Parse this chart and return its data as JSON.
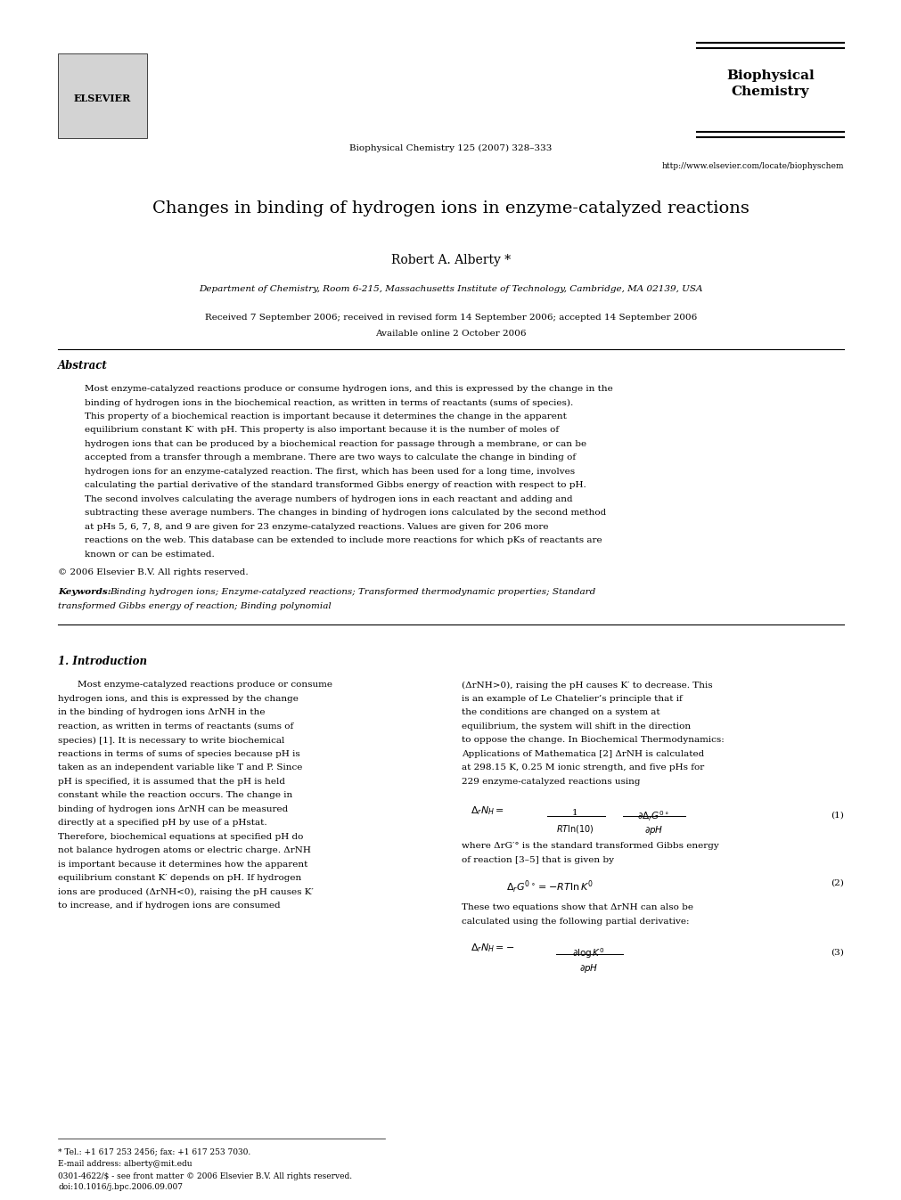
{
  "background_color": "#ffffff",
  "page_width": 9.92,
  "page_height": 13.23,
  "journal_name": "Biophysical\nChemistry",
  "journal_info": "Biophysical Chemistry 125 (2007) 328–333",
  "journal_url": "http://www.elsevier.com/locate/biophyschem",
  "title": "Changes in binding of hydrogen ions in enzyme-catalyzed reactions",
  "author": "Robert A. Alberty *",
  "affiliation": "Department of Chemistry, Room 6-215, Massachusetts Institute of Technology, Cambridge, MA 02139, USA",
  "received": "Received 7 September 2006; received in revised form 14 September 2006; accepted 14 September 2006",
  "available": "Available online 2 October 2006",
  "abstract_title": "Abstract",
  "abstract_text": "Most enzyme-catalyzed reactions produce or consume hydrogen ions, and this is expressed by the change in the binding of hydrogen ions in the biochemical reaction, as written in terms of reactants (sums of species). This property of a biochemical reaction is important because it determines the change in the apparent equilibrium constant K′ with pH. This property is also important because it is the number of moles of hydrogen ions that can be produced by a biochemical reaction for passage through a membrane, or can be accepted from a transfer through a membrane. There are two ways to calculate the change in binding of hydrogen ions for an enzyme-catalyzed reaction. The first, which has been used for a long time, involves calculating the partial derivative of the standard transformed Gibbs energy of reaction with respect to pH. The second involves calculating the average numbers of hydrogen ions in each reactant and adding and subtracting these average numbers. The changes in binding of hydrogen ions calculated by the second method at pHs 5, 6, 7, 8, and 9 are given for 23 enzyme-catalyzed reactions. Values are given for 206 more reactions on the web. This database can be extended to include more reactions for which pKs of reactants are known or can be estimated.",
  "copyright": "© 2006 Elsevier B.V. All rights reserved.",
  "keywords_label": "Keywords:",
  "keywords_text": "Binding hydrogen ions; Enzyme-catalyzed reactions; Transformed thermodynamic properties; Standard transformed Gibbs energy of reaction; Binding polynomial",
  "section1_title": "1. Introduction",
  "section1_col1_text": "Most enzyme-catalyzed reactions produce or consume hydrogen ions, and this is expressed by the change in the binding of hydrogen ions ΔrNH in the reaction, as written in terms of reactants (sums of species) [1]. It is necessary to write biochemical reactions in terms of sums of species because pH is taken as an independent variable like T and P. Since pH is specified, it is assumed that the pH is held constant while the reaction occurs. The change in binding of hydrogen ions ΔrNH can be measured directly at a specified pH by use of a pHstat. Therefore, biochemical equations at specified pH do not balance hydrogen atoms or electric charge. ΔrNH is important because it determines how the apparent equilibrium constant K′ depends on pH. If hydrogen ions are produced (ΔrNH<0), raising the pH causes K′ to increase, and if hydrogen ions are consumed",
  "section1_col2_text": "(ΔrNH>0), raising the pH causes K′ to decrease. This is an example of Le Chatelier’s principle that if the conditions are changed on a system at equilibrium, the system will shift in the direction to oppose the change. In Biochemical Thermodynamics: Applications of Mathematica [2] ΔrNH is calculated at 298.15 K, 0.25 M ionic strength, and five pHs for 229 enzyme-catalyzed reactions using",
  "eq1_label": "(1)",
  "eq1_text": "ΔrNH =",
  "eq1_fraction_num": "1",
  "eq1_fraction_den": "RT ln(10)",
  "eq1_partial": "∂ΔrG′°",
  "eq1_partial_den": "∂pH",
  "eq2_label": "(2)",
  "eq2_prefix": "where ΔrG′° is the standard transformed Gibbs energy of reaction [3–5] that is given by",
  "eq2_text": "ΔrG′° = −RT ln K′",
  "eq3_label": "(3)",
  "eq3_prefix": "These two equations show that ΔrNH can also be calculated using the following partial derivative:",
  "eq3_text": "ΔrNH = −",
  "eq3_fraction_num": "∂ log K′",
  "eq3_fraction_den": "∂pH",
  "footer_tel": "* Tel.: +1 617 253 2456; fax: +1 617 253 7030.",
  "footer_email": "E-mail address: alberty@mit.edu",
  "footer_issn": "0301-4622/$ - see front matter © 2006 Elsevier B.V. All rights reserved.",
  "footer_doi": "doi:10.1016/j.bpc.2006.09.007"
}
